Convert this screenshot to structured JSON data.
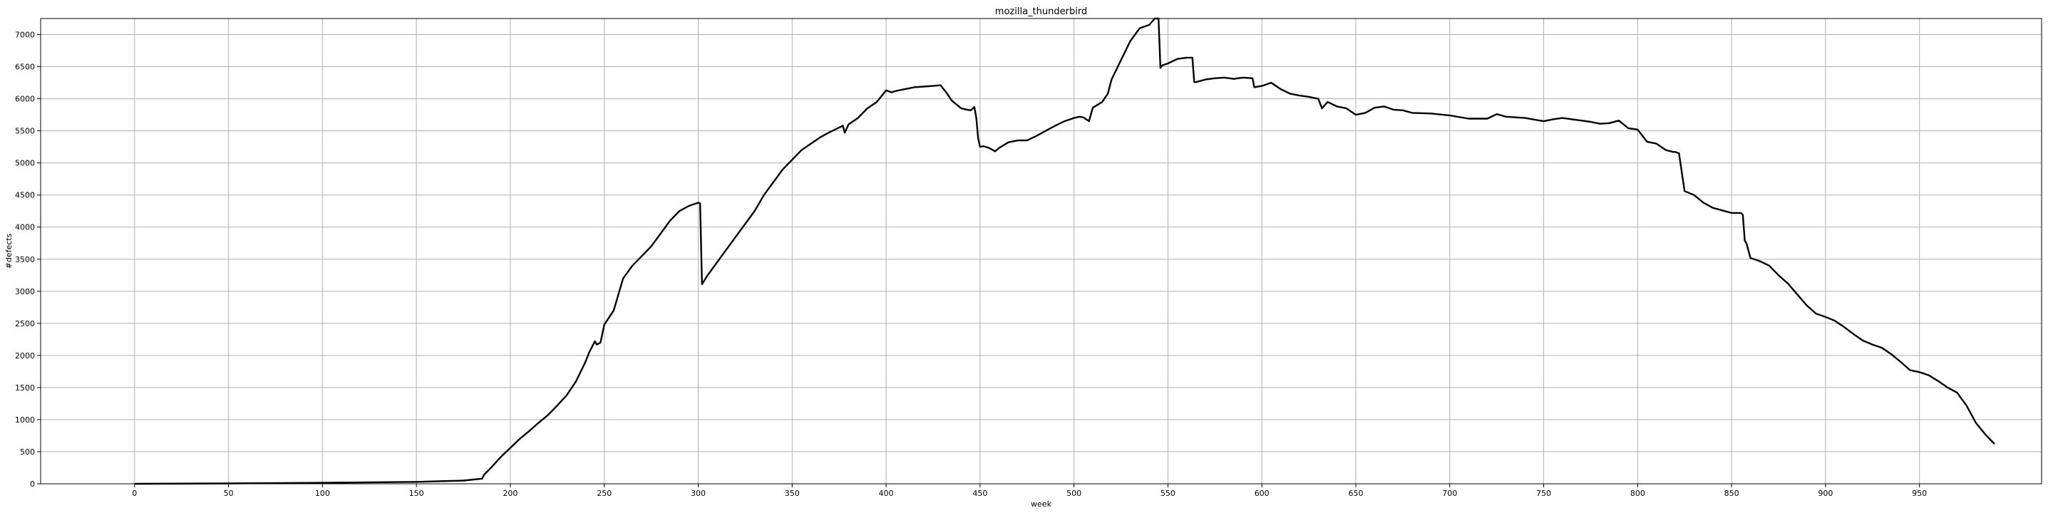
{
  "chart_data": {
    "type": "line",
    "title": "mozilla_thunderbird",
    "xlabel": "week",
    "ylabel": "#defects",
    "xlim": [
      -50,
      1015
    ],
    "ylim": [
      0,
      7250
    ],
    "xticks": [
      0,
      50,
      100,
      150,
      200,
      250,
      300,
      350,
      400,
      450,
      500,
      550,
      600,
      650,
      700,
      750,
      800,
      850,
      900,
      950
    ],
    "yticks": [
      0,
      500,
      1000,
      1500,
      2000,
      2500,
      3000,
      3500,
      4000,
      4500,
      5000,
      5500,
      6000,
      6500,
      7000
    ],
    "grid": true,
    "line_color": "#000000",
    "grid_color": "#b0b0b0",
    "series": [
      {
        "x": [
          0,
          50,
          100,
          150,
          175,
          185,
          186,
          190,
          195,
          200,
          205,
          210,
          215,
          220,
          225,
          230,
          235,
          240,
          242,
          245,
          246,
          248,
          250,
          255,
          260,
          265,
          270,
          275,
          280,
          285,
          290,
          295,
          300,
          301,
          302,
          305,
          310,
          315,
          320,
          325,
          330,
          335,
          340,
          345,
          350,
          355,
          360,
          365,
          370,
          375,
          377,
          378,
          380,
          385,
          390,
          395,
          400,
          403,
          405,
          410,
          415,
          420,
          425,
          429,
          432,
          435,
          440,
          443,
          445,
          447,
          448,
          449,
          450,
          452,
          455,
          458,
          460,
          465,
          470,
          475,
          480,
          485,
          490,
          495,
          500,
          503,
          505,
          508,
          510,
          515,
          518,
          520,
          525,
          530,
          535,
          540,
          543,
          545,
          546,
          547,
          550,
          555,
          560,
          563,
          564,
          565,
          570,
          575,
          580,
          585,
          590,
          595,
          596,
          600,
          605,
          610,
          615,
          620,
          625,
          630,
          632,
          635,
          640,
          645,
          650,
          655,
          660,
          665,
          670,
          675,
          680,
          690,
          700,
          710,
          720,
          725,
          730,
          740,
          750,
          755,
          760,
          765,
          770,
          775,
          780,
          785,
          790,
          795,
          800,
          805,
          810,
          815,
          819,
          820,
          822,
          825,
          830,
          835,
          840,
          845,
          850,
          855,
          856,
          857,
          858,
          860,
          865,
          870,
          875,
          880,
          885,
          890,
          895,
          900,
          905,
          910,
          915,
          920,
          925,
          930,
          935,
          940,
          945,
          950,
          955,
          960,
          965,
          970,
          975,
          980,
          985,
          990
        ],
        "y": [
          0,
          5,
          15,
          30,
          50,
          80,
          140,
          260,
          420,
          560,
          700,
          820,
          950,
          1070,
          1220,
          1380,
          1600,
          1900,
          2050,
          2220,
          2170,
          2200,
          2480,
          2700,
          3200,
          3400,
          3550,
          3700,
          3900,
          4100,
          4250,
          4330,
          4380,
          4370,
          3110,
          3250,
          3450,
          3650,
          3850,
          4050,
          4250,
          4500,
          4700,
          4900,
          5050,
          5200,
          5300,
          5400,
          5480,
          5550,
          5580,
          5470,
          5600,
          5700,
          5850,
          5950,
          6130,
          6100,
          6120,
          6150,
          6180,
          6190,
          6200,
          6210,
          6100,
          5970,
          5850,
          5830,
          5820,
          5870,
          5700,
          5380,
          5250,
          5260,
          5230,
          5180,
          5230,
          5320,
          5350,
          5350,
          5420,
          5500,
          5580,
          5650,
          5700,
          5720,
          5710,
          5650,
          5860,
          5950,
          6080,
          6300,
          6600,
          6900,
          7100,
          7150,
          7250,
          7250,
          6480,
          6520,
          6550,
          6620,
          6640,
          6640,
          6260,
          6260,
          6300,
          6320,
          6330,
          6310,
          6330,
          6320,
          6180,
          6200,
          6250,
          6150,
          6080,
          6050,
          6030,
          6000,
          5850,
          5950,
          5880,
          5850,
          5750,
          5780,
          5860,
          5880,
          5830,
          5820,
          5780,
          5770,
          5740,
          5690,
          5690,
          5760,
          5720,
          5700,
          5650,
          5680,
          5700,
          5680,
          5660,
          5640,
          5610,
          5620,
          5660,
          5540,
          5520,
          5330,
          5300,
          5200,
          5170,
          5170,
          5150,
          4560,
          4500,
          4380,
          4300,
          4260,
          4220,
          4220,
          4190,
          3790,
          3740,
          3520,
          3470,
          3400,
          3250,
          3120,
          2950,
          2780,
          2650,
          2600,
          2540,
          2440,
          2330,
          2230,
          2170,
          2120,
          2020,
          1900,
          1770,
          1740,
          1690,
          1600,
          1500,
          1420,
          1220,
          950,
          770,
          620
        ]
      }
    ]
  }
}
